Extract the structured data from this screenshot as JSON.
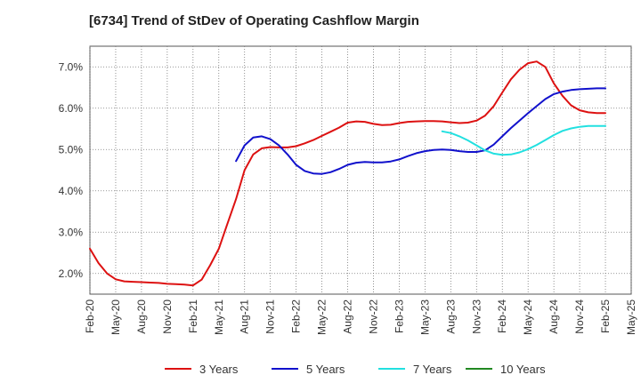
{
  "chart_data": {
    "type": "line",
    "title": "[6734]  Trend of StDev of Operating Cashflow Margin",
    "xlabel": "",
    "ylabel": "",
    "ylim": [
      1.5,
      7.5
    ],
    "yticks": [
      2.0,
      3.0,
      4.0,
      5.0,
      6.0,
      7.0
    ],
    "ytick_labels": [
      "2.0%",
      "3.0%",
      "4.0%",
      "5.0%",
      "6.0%",
      "7.0%"
    ],
    "x_range_months": [
      "2020-02",
      "2025-05"
    ],
    "x_tick_labels": [
      "Feb-20",
      "May-20",
      "Aug-20",
      "Nov-20",
      "Feb-21",
      "May-21",
      "Aug-21",
      "Nov-21",
      "Feb-22",
      "May-22",
      "Aug-22",
      "Nov-22",
      "Feb-23",
      "May-23",
      "Aug-23",
      "Nov-23",
      "Feb-24",
      "May-24",
      "Aug-24",
      "Nov-24",
      "Feb-25",
      "May-25"
    ],
    "grid": true,
    "grid_style": "dotted",
    "legend_position": "bottom",
    "series": [
      {
        "name": "3 Years",
        "color": "#dd1111",
        "points": [
          [
            "2020-02",
            2.6
          ],
          [
            "2020-03",
            2.25
          ],
          [
            "2020-04",
            2.0
          ],
          [
            "2020-05",
            1.86
          ],
          [
            "2020-06",
            1.81
          ],
          [
            "2020-07",
            1.8
          ],
          [
            "2020-08",
            1.79
          ],
          [
            "2020-09",
            1.78
          ],
          [
            "2020-10",
            1.77
          ],
          [
            "2020-11",
            1.75
          ],
          [
            "2020-12",
            1.74
          ],
          [
            "2021-01",
            1.73
          ],
          [
            "2021-02",
            1.71
          ],
          [
            "2021-03",
            1.85
          ],
          [
            "2021-04",
            2.2
          ],
          [
            "2021-05",
            2.6
          ],
          [
            "2021-06",
            3.2
          ],
          [
            "2021-07",
            3.8
          ],
          [
            "2021-08",
            4.5
          ],
          [
            "2021-09",
            4.88
          ],
          [
            "2021-10",
            5.03
          ],
          [
            "2021-11",
            5.06
          ],
          [
            "2021-12",
            5.05
          ],
          [
            "2022-01",
            5.05
          ],
          [
            "2022-02",
            5.08
          ],
          [
            "2022-03",
            5.15
          ],
          [
            "2022-04",
            5.23
          ],
          [
            "2022-05",
            5.33
          ],
          [
            "2022-06",
            5.43
          ],
          [
            "2022-07",
            5.53
          ],
          [
            "2022-08",
            5.65
          ],
          [
            "2022-09",
            5.68
          ],
          [
            "2022-10",
            5.67
          ],
          [
            "2022-11",
            5.62
          ],
          [
            "2022-12",
            5.59
          ],
          [
            "2023-01",
            5.6
          ],
          [
            "2023-02",
            5.64
          ],
          [
            "2023-03",
            5.67
          ],
          [
            "2023-04",
            5.68
          ],
          [
            "2023-05",
            5.69
          ],
          [
            "2023-06",
            5.69
          ],
          [
            "2023-07",
            5.68
          ],
          [
            "2023-08",
            5.66
          ],
          [
            "2023-09",
            5.64
          ],
          [
            "2023-10",
            5.65
          ],
          [
            "2023-11",
            5.7
          ],
          [
            "2023-12",
            5.82
          ],
          [
            "2024-01",
            6.05
          ],
          [
            "2024-02",
            6.38
          ],
          [
            "2024-03",
            6.7
          ],
          [
            "2024-04",
            6.93
          ],
          [
            "2024-05",
            7.09
          ],
          [
            "2024-06",
            7.13
          ],
          [
            "2024-07",
            7.0
          ],
          [
            "2024-08",
            6.6
          ],
          [
            "2024-09",
            6.3
          ],
          [
            "2024-10",
            6.07
          ],
          [
            "2024-11",
            5.95
          ],
          [
            "2024-12",
            5.9
          ],
          [
            "2025-01",
            5.88
          ],
          [
            "2025-02",
            5.88
          ]
        ]
      },
      {
        "name": "5 Years",
        "color": "#1111cc",
        "points": [
          [
            "2021-07",
            4.72
          ],
          [
            "2021-08",
            5.1
          ],
          [
            "2021-09",
            5.29
          ],
          [
            "2021-10",
            5.32
          ],
          [
            "2021-11",
            5.25
          ],
          [
            "2021-12",
            5.1
          ],
          [
            "2022-01",
            4.88
          ],
          [
            "2022-02",
            4.63
          ],
          [
            "2022-03",
            4.48
          ],
          [
            "2022-04",
            4.42
          ],
          [
            "2022-05",
            4.41
          ],
          [
            "2022-06",
            4.45
          ],
          [
            "2022-07",
            4.53
          ],
          [
            "2022-08",
            4.63
          ],
          [
            "2022-09",
            4.68
          ],
          [
            "2022-10",
            4.7
          ],
          [
            "2022-11",
            4.69
          ],
          [
            "2022-12",
            4.69
          ],
          [
            "2023-01",
            4.71
          ],
          [
            "2023-02",
            4.76
          ],
          [
            "2023-03",
            4.84
          ],
          [
            "2023-04",
            4.91
          ],
          [
            "2023-05",
            4.96
          ],
          [
            "2023-06",
            4.99
          ],
          [
            "2023-07",
            5.0
          ],
          [
            "2023-08",
            4.99
          ],
          [
            "2023-09",
            4.96
          ],
          [
            "2023-10",
            4.94
          ],
          [
            "2023-11",
            4.94
          ],
          [
            "2023-12",
            4.98
          ],
          [
            "2024-01",
            5.12
          ],
          [
            "2024-02",
            5.32
          ],
          [
            "2024-03",
            5.52
          ],
          [
            "2024-04",
            5.7
          ],
          [
            "2024-05",
            5.88
          ],
          [
            "2024-06",
            6.05
          ],
          [
            "2024-07",
            6.22
          ],
          [
            "2024-08",
            6.34
          ],
          [
            "2024-09",
            6.4
          ],
          [
            "2024-10",
            6.44
          ],
          [
            "2024-11",
            6.46
          ],
          [
            "2024-12",
            6.47
          ],
          [
            "2025-01",
            6.48
          ],
          [
            "2025-02",
            6.48
          ]
        ]
      },
      {
        "name": "7 Years",
        "color": "#22e0e0",
        "points": [
          [
            "2023-07",
            5.44
          ],
          [
            "2023-08",
            5.4
          ],
          [
            "2023-09",
            5.32
          ],
          [
            "2023-10",
            5.22
          ],
          [
            "2023-11",
            5.1
          ],
          [
            "2023-12",
            4.98
          ],
          [
            "2024-01",
            4.9
          ],
          [
            "2024-02",
            4.87
          ],
          [
            "2024-03",
            4.88
          ],
          [
            "2024-04",
            4.93
          ],
          [
            "2024-05",
            5.01
          ],
          [
            "2024-06",
            5.11
          ],
          [
            "2024-07",
            5.23
          ],
          [
            "2024-08",
            5.35
          ],
          [
            "2024-09",
            5.45
          ],
          [
            "2024-10",
            5.51
          ],
          [
            "2024-11",
            5.55
          ],
          [
            "2024-12",
            5.57
          ],
          [
            "2025-01",
            5.57
          ],
          [
            "2025-02",
            5.57
          ]
        ]
      },
      {
        "name": "10 Years",
        "color": "#228822",
        "points": []
      }
    ]
  }
}
